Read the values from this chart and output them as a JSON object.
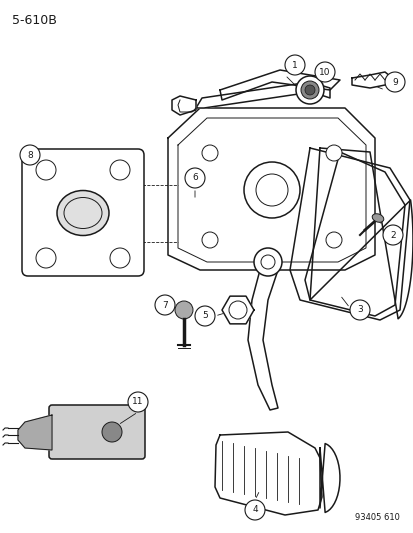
{
  "title": "5-610B",
  "part_number": "93405 610",
  "bg_color": "#ffffff",
  "line_color": "#1a1a1a",
  "fig_width": 4.14,
  "fig_height": 5.33,
  "dpi": 100
}
